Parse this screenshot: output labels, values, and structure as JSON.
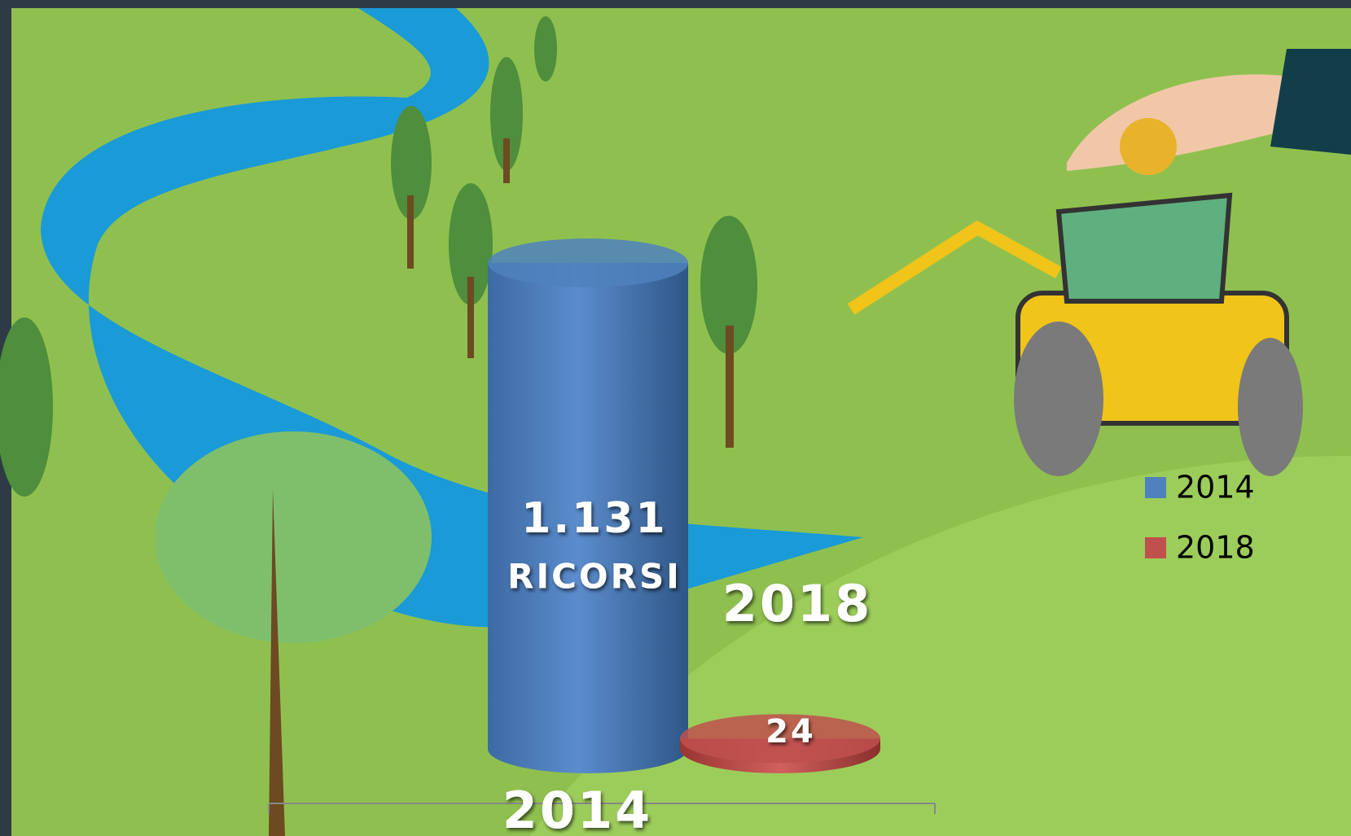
{
  "chart_data": {
    "type": "cylinder",
    "categories": [
      "2014",
      "2018"
    ],
    "values": [
      1131,
      24
    ],
    "value_labels": [
      "1.131",
      "24"
    ],
    "colors": [
      "#4f81bd",
      "#c0504d"
    ],
    "annotation": "RICORSI",
    "legend": "right"
  }
}
